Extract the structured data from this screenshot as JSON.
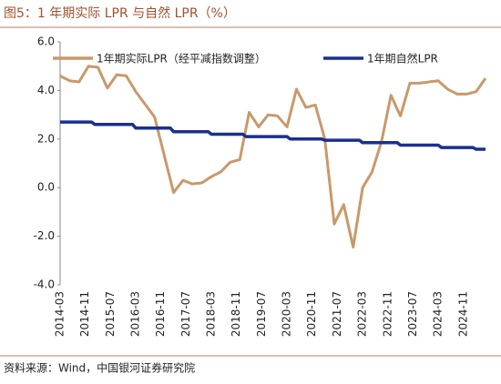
{
  "chart_data": {
    "type": "line",
    "title": "图5：1 年期实际 LPR 与自然 LPR（%）",
    "source": "资料来源：Wind，中国银河证券研究院",
    "categories": [
      "2014-03",
      null,
      null,
      null,
      null,
      null,
      null,
      null,
      "2014-11",
      null,
      null,
      null,
      null,
      null,
      null,
      null,
      "2015-07",
      null,
      null,
      null,
      null,
      null,
      null,
      null,
      "2016-03",
      null,
      null,
      null,
      null,
      null,
      null,
      null,
      "2016-11",
      null,
      null,
      null,
      null,
      null,
      null,
      null,
      "2017-07",
      null,
      null,
      null,
      null,
      null,
      null,
      null,
      "2018-03",
      null,
      null,
      null,
      null,
      null,
      null,
      null,
      "2018-11",
      null,
      null,
      null,
      null,
      null,
      null,
      null,
      "2019-07",
      null,
      null,
      null,
      null,
      null,
      null,
      null,
      "2020-03",
      null,
      null,
      null,
      null,
      null,
      null,
      null,
      "2020-11",
      null,
      null,
      null,
      null,
      null,
      null,
      null,
      "2021-07",
      null,
      null,
      null,
      null,
      null,
      null,
      null,
      "2022-03",
      null,
      null,
      null,
      null,
      null,
      null,
      null,
      "2022-11",
      null,
      null,
      null,
      null,
      null,
      null,
      null,
      "2023-07",
      null,
      null,
      null,
      null,
      null,
      null,
      null,
      "2024-03",
      null,
      null,
      null,
      null,
      null,
      null,
      null,
      "2024-11",
      null,
      null,
      null,
      null,
      null,
      null,
      null
    ],
    "series": [
      {
        "name": "1年期实际LPR（经平减指数调整）",
        "color": "#C9996B",
        "values": [
          4.6,
          4.53,
          4.47,
          4.4,
          4.38,
          4.37,
          4.35,
          4.57,
          4.78,
          5.0,
          4.98,
          4.97,
          4.95,
          4.67,
          4.38,
          4.1,
          4.28,
          4.47,
          4.65,
          4.63,
          4.62,
          4.6,
          4.38,
          4.17,
          3.95,
          3.78,
          3.6,
          3.43,
          3.25,
          3.08,
          2.9,
          2.38,
          1.87,
          1.35,
          0.83,
          0.32,
          -0.2,
          -0.03,
          0.13,
          0.3,
          0.25,
          0.2,
          0.15,
          0.17,
          0.18,
          0.2,
          0.28,
          0.37,
          0.45,
          0.52,
          0.58,
          0.65,
          0.78,
          0.92,
          1.05,
          1.08,
          1.12,
          1.15,
          1.8,
          2.45,
          3.1,
          2.9,
          2.7,
          2.5,
          2.67,
          2.83,
          3.0,
          2.98,
          2.97,
          2.95,
          2.8,
          2.65,
          2.5,
          3.02,
          3.53,
          4.05,
          3.8,
          3.55,
          3.3,
          3.33,
          3.37,
          3.4,
          2.93,
          2.47,
          2.0,
          0.83,
          -0.33,
          -1.5,
          -1.23,
          -0.97,
          -0.7,
          -1.28,
          -1.87,
          -2.45,
          -1.63,
          -0.82,
          0.0,
          0.22,
          0.43,
          0.65,
          1.07,
          1.48,
          1.9,
          2.53,
          3.17,
          3.8,
          3.52,
          3.23,
          2.95,
          3.4,
          3.85,
          4.3,
          4.3,
          4.3,
          4.3,
          4.32,
          4.33,
          4.35,
          4.37,
          4.38,
          4.4,
          4.28,
          4.17,
          4.05,
          3.98,
          3.92,
          3.85,
          3.85,
          3.85,
          3.85,
          3.88,
          3.92,
          3.95,
          4.13,
          4.32,
          4.5
        ]
      },
      {
        "name": "1年期自然LPR",
        "color": "#1B2F8F",
        "values": [
          2.7,
          2.7,
          2.7,
          2.7,
          2.7,
          2.7,
          2.7,
          2.7,
          2.7,
          2.7,
          2.7,
          2.6,
          2.6,
          2.6,
          2.6,
          2.6,
          2.6,
          2.6,
          2.6,
          2.6,
          2.6,
          2.6,
          2.6,
          2.6,
          2.45,
          2.45,
          2.45,
          2.45,
          2.45,
          2.45,
          2.45,
          2.45,
          2.45,
          2.45,
          2.45,
          2.45,
          2.3,
          2.3,
          2.3,
          2.3,
          2.3,
          2.3,
          2.3,
          2.3,
          2.3,
          2.3,
          2.3,
          2.3,
          2.2,
          2.2,
          2.2,
          2.2,
          2.2,
          2.2,
          2.2,
          2.2,
          2.2,
          2.2,
          2.2,
          2.1,
          2.1,
          2.1,
          2.1,
          2.1,
          2.1,
          2.1,
          2.1,
          2.1,
          2.1,
          2.1,
          2.1,
          2.1,
          2.1,
          2.0,
          2.0,
          2.0,
          2.0,
          2.0,
          2.0,
          2.0,
          2.0,
          2.0,
          2.0,
          2.0,
          1.95,
          1.95,
          1.95,
          1.95,
          1.95,
          1.95,
          1.95,
          1.95,
          1.95,
          1.95,
          1.95,
          1.95,
          1.85,
          1.85,
          1.85,
          1.85,
          1.85,
          1.85,
          1.85,
          1.85,
          1.85,
          1.85,
          1.85,
          1.85,
          1.75,
          1.75,
          1.75,
          1.75,
          1.75,
          1.75,
          1.75,
          1.75,
          1.75,
          1.75,
          1.75,
          1.75,
          1.75,
          1.65,
          1.65,
          1.65,
          1.65,
          1.65,
          1.65,
          1.65,
          1.65,
          1.65,
          1.65,
          1.65,
          1.58,
          1.58,
          1.58,
          1.58
        ]
      }
    ],
    "ylim": [
      -4,
      6
    ],
    "yticks": [
      {
        "value": 6,
        "label": "6.0"
      },
      {
        "value": 4,
        "label": "4.0"
      },
      {
        "value": 2,
        "label": "2.0"
      },
      {
        "value": 0,
        "label": "0.0"
      },
      {
        "value": -2,
        "label": "-2.0"
      },
      {
        "value": -4,
        "label": "-4.0"
      }
    ],
    "grid": false,
    "legend": "top"
  }
}
